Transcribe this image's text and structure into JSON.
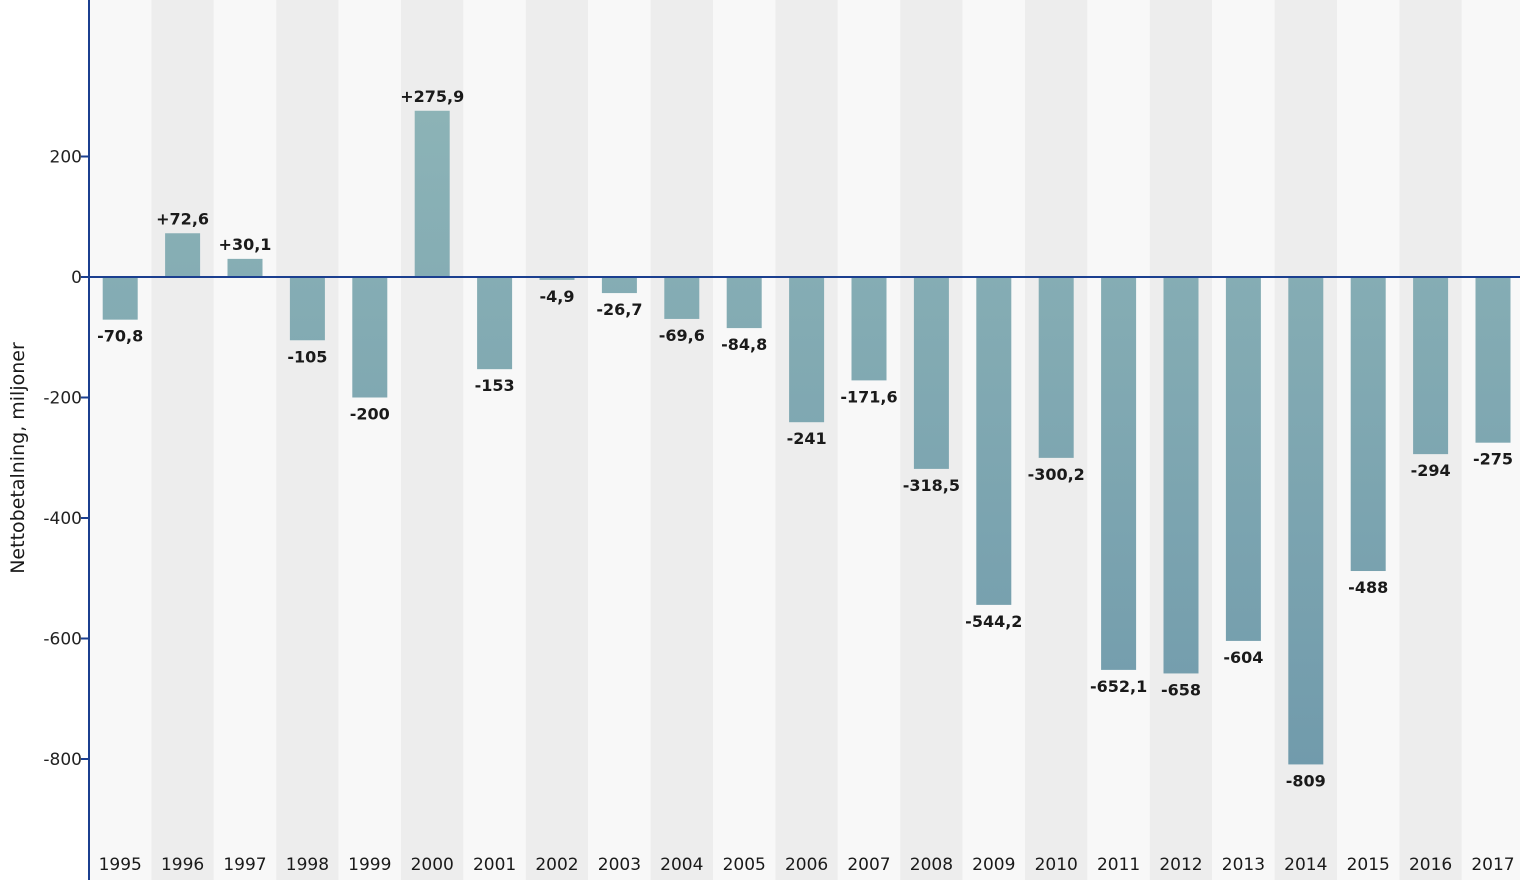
{
  "chart_data": {
    "type": "bar",
    "ylabel": "Nettobetalning, miljoner",
    "xlabel": "",
    "categories": [
      "1995",
      "1996",
      "1997",
      "1998",
      "1999",
      "2000",
      "2001",
      "2002",
      "2003",
      "2004",
      "2005",
      "2006",
      "2007",
      "2008",
      "2009",
      "2010",
      "2011",
      "2012",
      "2013",
      "2014",
      "2015",
      "2016",
      "2017"
    ],
    "values": [
      -70.8,
      72.6,
      30.1,
      -105,
      -200,
      275.9,
      -153,
      -4.9,
      -26.7,
      -69.6,
      -84.8,
      -241,
      -171.6,
      -318.5,
      -544.2,
      -300.2,
      -652.1,
      -658,
      -604,
      -809,
      -488,
      -294,
      -275
    ],
    "data_labels": [
      "-70,8",
      "+72,6",
      "+30,1",
      "-105",
      "-200",
      "+275,9",
      "-153",
      "-4,9",
      "-26,7",
      "-69,6",
      "-84,8",
      "-241",
      "-171,6",
      "-318,5",
      "-544,2",
      "-300,2",
      "-652,1",
      "-658",
      "-604",
      "-809",
      "-488",
      "-294",
      "-275"
    ],
    "yticks": [
      200,
      0,
      -200,
      -400,
      -600,
      -800
    ],
    "ytick_labels": [
      "200",
      "0",
      "-200",
      "-400",
      "-600",
      "-800"
    ],
    "ylim": [
      -1000,
      460
    ],
    "grid": false,
    "colors": {
      "bar_top": "#8db4b7",
      "bar_bottom": "#6f99ab",
      "axis": "#1b3f8f",
      "band_light": "#f8f8f8",
      "band_dark": "#ededed"
    }
  }
}
